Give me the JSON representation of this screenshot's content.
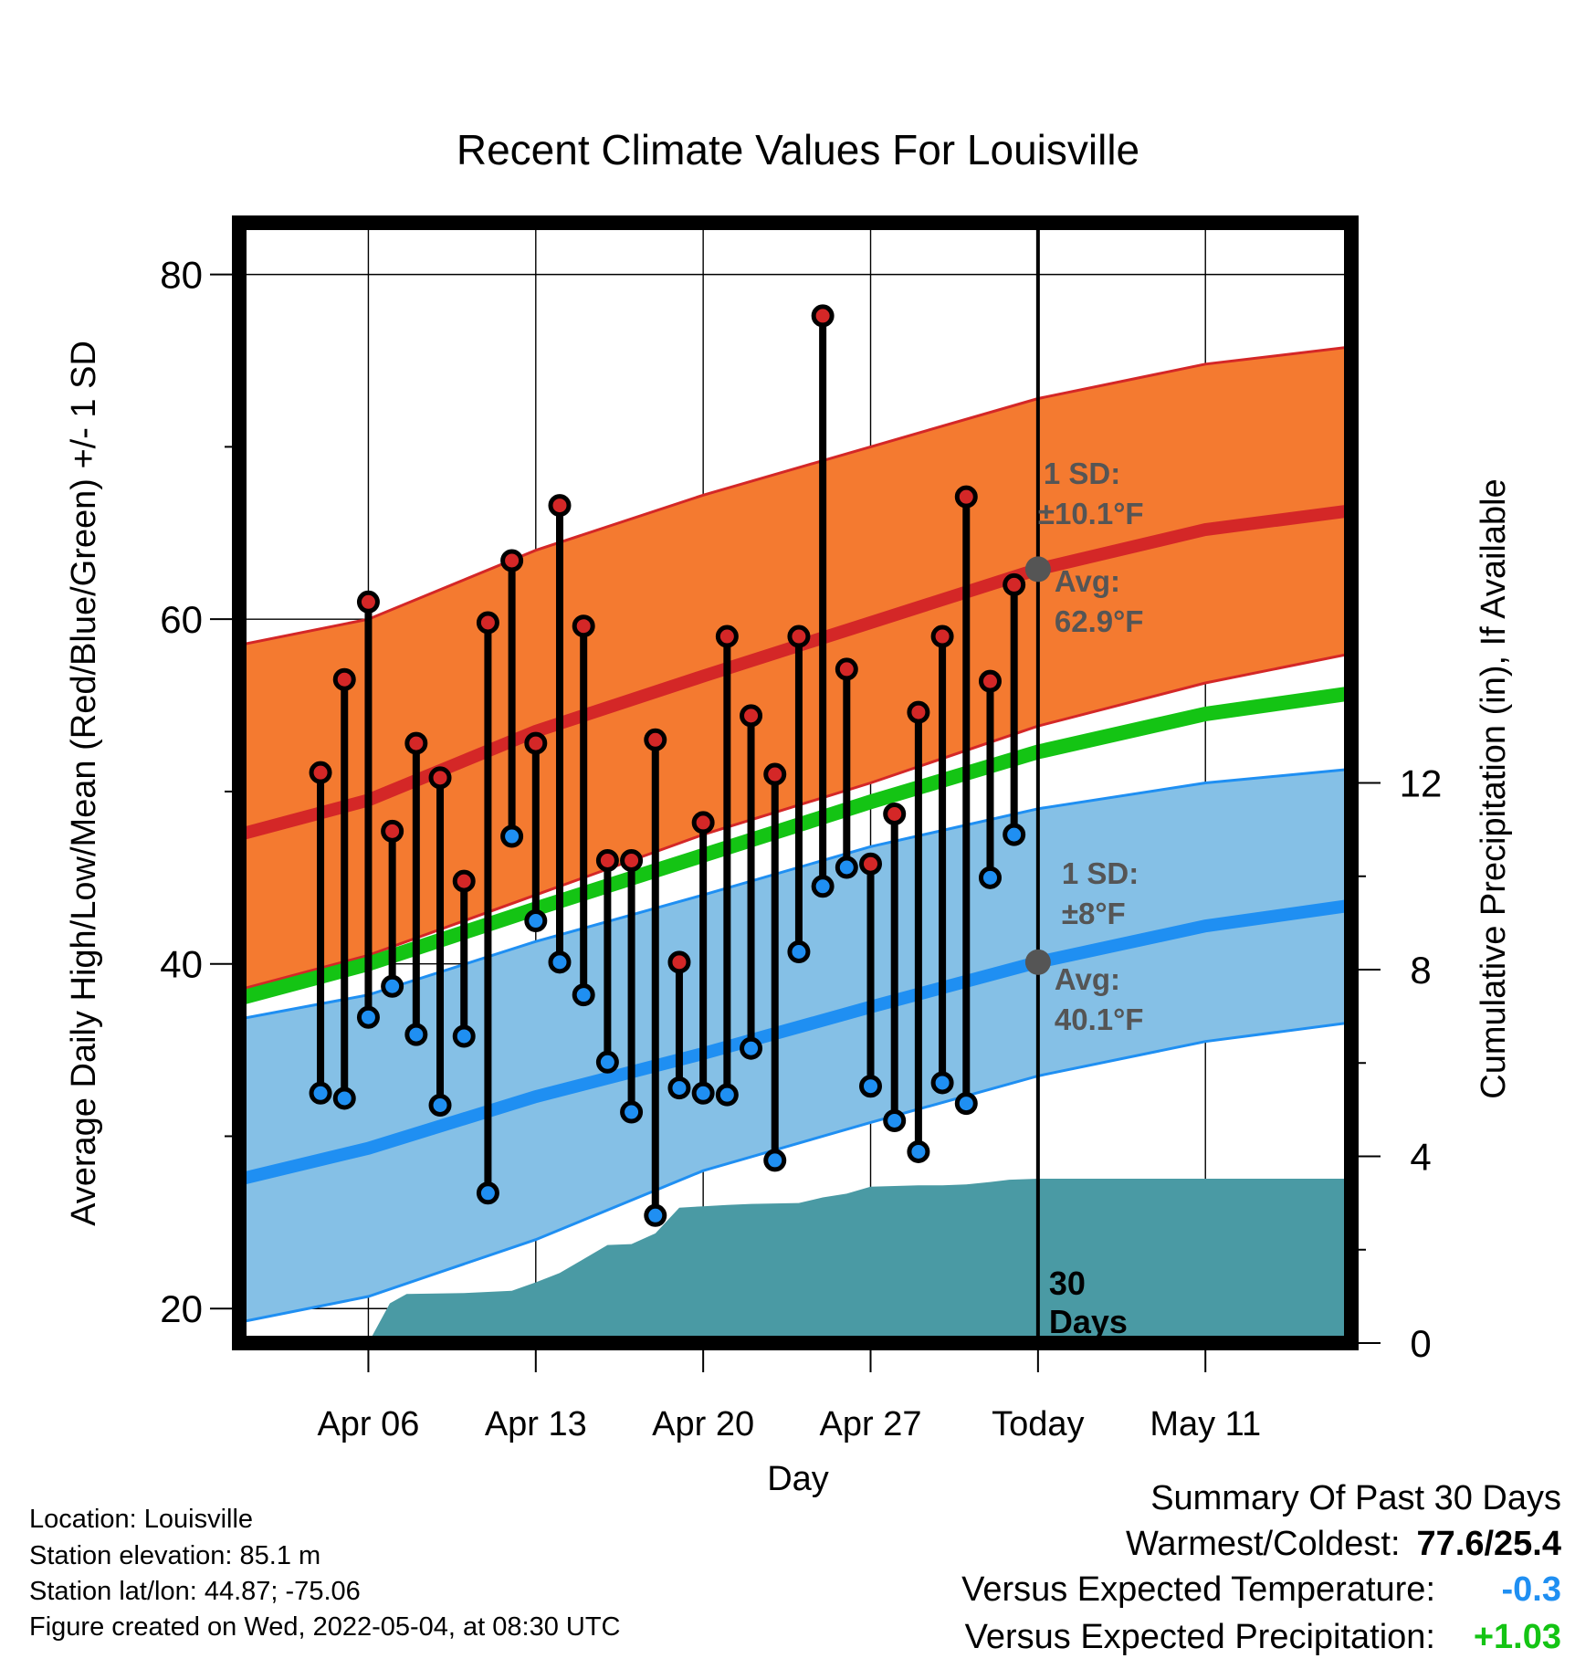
{
  "chart_data": {
    "type": "line",
    "title": "Recent Climate Values For Louisville",
    "xlabel": "Day",
    "ylabel": "Average Daily High/Low/Mean (Red/Blue/Green) +/- 1 SD",
    "y2label": "Cumulative Precipitation (in), If Available",
    "ylim": [
      18,
      83
    ],
    "y2lim": [
      0,
      24
    ],
    "yticks": [
      20,
      40,
      60,
      80
    ],
    "y2ticks": [
      0,
      4,
      8,
      12
    ],
    "x_day_range": [
      -33.4,
      13.1
    ],
    "xticks": [
      {
        "day": -28,
        "label": "Apr 06"
      },
      {
        "day": -21,
        "label": "Apr 13"
      },
      {
        "day": -14,
        "label": "Apr 20"
      },
      {
        "day": -7,
        "label": "Apr 27"
      },
      {
        "day": 0,
        "label": "Today"
      },
      {
        "day": 7,
        "label": "May 11"
      }
    ],
    "grid": true,
    "colors": {
      "high_band": "#f47a30",
      "high_line": "#d42727",
      "low_band": "#85c0e6",
      "low_line": "#1f8ff2",
      "mean_line": "#14c414",
      "precip_fill": "#4a9aa4",
      "annotation": "#555555"
    },
    "expected_high": {
      "days": [
        -33.4,
        -28,
        -21,
        -14,
        -7,
        0,
        7,
        13.1
      ],
      "mean": [
        47.5,
        49.5,
        53.5,
        56.7,
        59.8,
        62.9,
        65.2,
        66.3
      ],
      "upper": [
        58.5,
        60.0,
        64.0,
        67.2,
        70.0,
        72.8,
        74.8,
        75.8
      ],
      "lower": [
        38.5,
        40.5,
        44.0,
        47.5,
        50.5,
        53.8,
        56.3,
        58.0
      ]
    },
    "expected_mean": {
      "days": [
        -33.4,
        -28,
        -21,
        -14,
        -7,
        0,
        7,
        13.1
      ],
      "values": [
        38.0,
        40.0,
        43.2,
        46.3,
        49.4,
        52.3,
        54.5,
        55.7
      ]
    },
    "expected_low": {
      "days": [
        -33.4,
        -28,
        -21,
        -14,
        -7,
        0,
        7,
        13.1
      ],
      "mean": [
        27.5,
        29.3,
        32.3,
        34.8,
        37.5,
        40.1,
        42.2,
        43.4
      ],
      "upper": [
        36.8,
        38.2,
        41.3,
        44.0,
        46.8,
        49.0,
        50.5,
        51.3
      ],
      "lower": [
        19.2,
        20.7,
        24.0,
        28.0,
        30.8,
        33.5,
        35.5,
        36.6
      ]
    },
    "series": [
      {
        "name": "High",
        "days": [
          -30,
          -29,
          -28,
          -27,
          -26,
          -25,
          -24,
          -23,
          -22,
          -21,
          -20,
          -19,
          -18,
          -17,
          -16,
          -15,
          -14,
          -13,
          -12,
          -11,
          -10,
          -9,
          -8,
          -7,
          -6,
          -5,
          -4,
          -3,
          -2,
          -1
        ],
        "values": [
          51.1,
          56.5,
          61.0,
          47.7,
          52.8,
          50.8,
          44.8,
          59.8,
          63.4,
          52.8,
          66.6,
          59.6,
          46.0,
          46.0,
          53.0,
          40.1,
          48.2,
          59.0,
          54.4,
          51.0,
          59.0,
          77.6,
          57.1,
          45.8,
          48.7,
          54.6,
          59.0,
          67.1,
          56.4,
          62.0
        ]
      },
      {
        "name": "Low",
        "days": [
          -30,
          -29,
          -28,
          -27,
          -26,
          -25,
          -24,
          -23,
          -22,
          -21,
          -20,
          -19,
          -18,
          -17,
          -16,
          -15,
          -14,
          -13,
          -12,
          -11,
          -10,
          -9,
          -8,
          -7,
          -6,
          -5,
          -4,
          -3,
          -2,
          -1
        ],
        "values": [
          32.5,
          32.2,
          36.9,
          38.7,
          35.9,
          31.8,
          35.8,
          26.7,
          47.4,
          42.5,
          40.1,
          38.2,
          34.3,
          31.4,
          25.4,
          32.8,
          32.5,
          32.4,
          35.1,
          28.6,
          40.7,
          44.5,
          45.6,
          32.9,
          30.9,
          29.1,
          33.1,
          31.9,
          45.0,
          47.5
        ]
      },
      {
        "name": "Cumulative Precipitation",
        "days": [
          -33.4,
          -29.8,
          -28,
          -27.1,
          -26.4,
          -24,
          -22,
          -21,
          -20,
          -19,
          -18,
          -17,
          -16,
          -15,
          -14,
          -13,
          -12,
          -10,
          -9,
          -8,
          -7,
          -5,
          -4,
          -3,
          -2,
          -1.2,
          0,
          13.1
        ],
        "values": [
          0,
          0,
          0,
          0.85,
          1.05,
          1.07,
          1.12,
          1.3,
          1.5,
          1.8,
          2.1,
          2.12,
          2.35,
          2.9,
          2.93,
          2.96,
          2.98,
          3.0,
          3.12,
          3.2,
          3.35,
          3.38,
          3.38,
          3.4,
          3.45,
          3.5,
          3.52,
          3.52
        ]
      }
    ],
    "annotations": {
      "high_sd_label": "1 SD:",
      "high_sd_value": "±10.1°F",
      "high_avg_label": "Avg:",
      "high_avg_value": "62.9°F",
      "high_avg": 62.9,
      "low_sd_label": "1 SD:",
      "low_sd_value": "±8°F",
      "low_avg_label": "Avg:",
      "low_avg_value": "40.1°F",
      "low_avg": 40.1,
      "window_line1": "30",
      "window_line2": "Days"
    }
  },
  "station": {
    "location": "Location: Louisville",
    "elevation": "Station elevation: 85.1 m",
    "latlon": "Station lat/lon: 44.87; -75.06",
    "created": "Figure created on Wed, 2022-05-04, at 08:30 UTC"
  },
  "summary": {
    "title": "Summary Of Past 30 Days",
    "warm_cold_label": "Warmest/Coldest:",
    "warm_cold_value": "77.6/25.4",
    "temp_label": "Versus Expected Temperature:",
    "temp_value": "-0.3",
    "temp_color": "#1f8ff2",
    "precip_label": "Versus Expected Precipitation:",
    "precip_value": "+1.03",
    "precip_color": "#14c414"
  }
}
